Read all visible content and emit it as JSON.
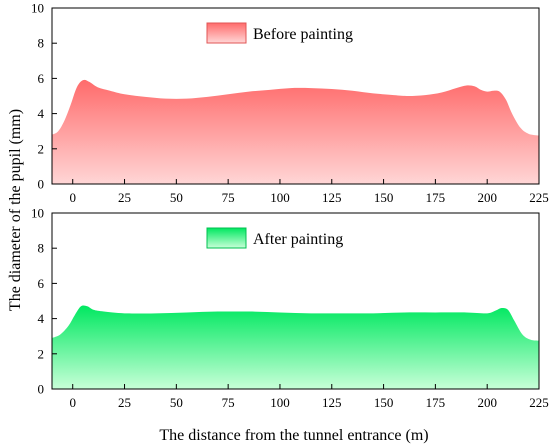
{
  "chart_data": [
    {
      "type": "area",
      "title": "",
      "xlabel": "The distance from the tunnel entrance (m)",
      "ylabel": "The diameter of the pupil (mm)",
      "xlim": [
        -10,
        225
      ],
      "ylim": [
        0,
        10
      ],
      "xticks": [
        0,
        25,
        50,
        75,
        100,
        125,
        150,
        175,
        200,
        225
      ],
      "yticks": [
        0,
        2,
        4,
        6,
        8,
        10
      ],
      "legend_position": "top-center",
      "series": [
        {
          "name": "Before painting",
          "color_top": "#ff6b6b",
          "color_bottom": "#ffd6d6",
          "edge_color": "#e05555",
          "x": [
            -10,
            -7,
            -4,
            -1,
            2,
            5,
            8,
            12,
            18,
            25,
            35,
            45,
            55,
            65,
            75,
            85,
            95,
            105,
            115,
            125,
            135,
            145,
            155,
            162,
            170,
            178,
            185,
            190,
            194,
            197,
            200,
            203,
            206,
            209,
            212,
            216,
            220,
            225
          ],
          "y": [
            2.8,
            3.0,
            3.6,
            4.5,
            5.5,
            5.9,
            5.8,
            5.5,
            5.3,
            5.1,
            4.95,
            4.85,
            4.85,
            4.95,
            5.1,
            5.25,
            5.35,
            5.45,
            5.45,
            5.4,
            5.3,
            5.15,
            5.05,
            5.0,
            5.05,
            5.2,
            5.45,
            5.6,
            5.55,
            5.35,
            5.25,
            5.3,
            5.25,
            4.8,
            4.0,
            3.2,
            2.85,
            2.75
          ]
        }
      ]
    },
    {
      "type": "area",
      "title": "",
      "xlabel": "The distance from the tunnel entrance (m)",
      "ylabel": "The diameter of the pupil (mm)",
      "xlim": [
        -10,
        225
      ],
      "ylim": [
        0,
        10
      ],
      "xticks": [
        0,
        25,
        50,
        75,
        100,
        125,
        150,
        175,
        200,
        225
      ],
      "yticks": [
        0,
        2,
        4,
        6,
        8,
        10
      ],
      "legend_position": "top-center",
      "series": [
        {
          "name": "After painting",
          "color_top": "#00e860",
          "color_bottom": "#c8ffd8",
          "edge_color": "#00c050",
          "x": [
            -10,
            -6,
            -2,
            1,
            4,
            7,
            10,
            15,
            25,
            40,
            55,
            70,
            85,
            100,
            115,
            130,
            145,
            160,
            175,
            190,
            200,
            204,
            207,
            210,
            213,
            217,
            221,
            225
          ],
          "y": [
            2.9,
            3.1,
            3.6,
            4.2,
            4.7,
            4.7,
            4.5,
            4.4,
            4.3,
            4.3,
            4.35,
            4.4,
            4.4,
            4.35,
            4.3,
            4.3,
            4.3,
            4.35,
            4.35,
            4.35,
            4.3,
            4.45,
            4.6,
            4.5,
            3.9,
            3.1,
            2.8,
            2.75
          ]
        }
      ]
    }
  ]
}
